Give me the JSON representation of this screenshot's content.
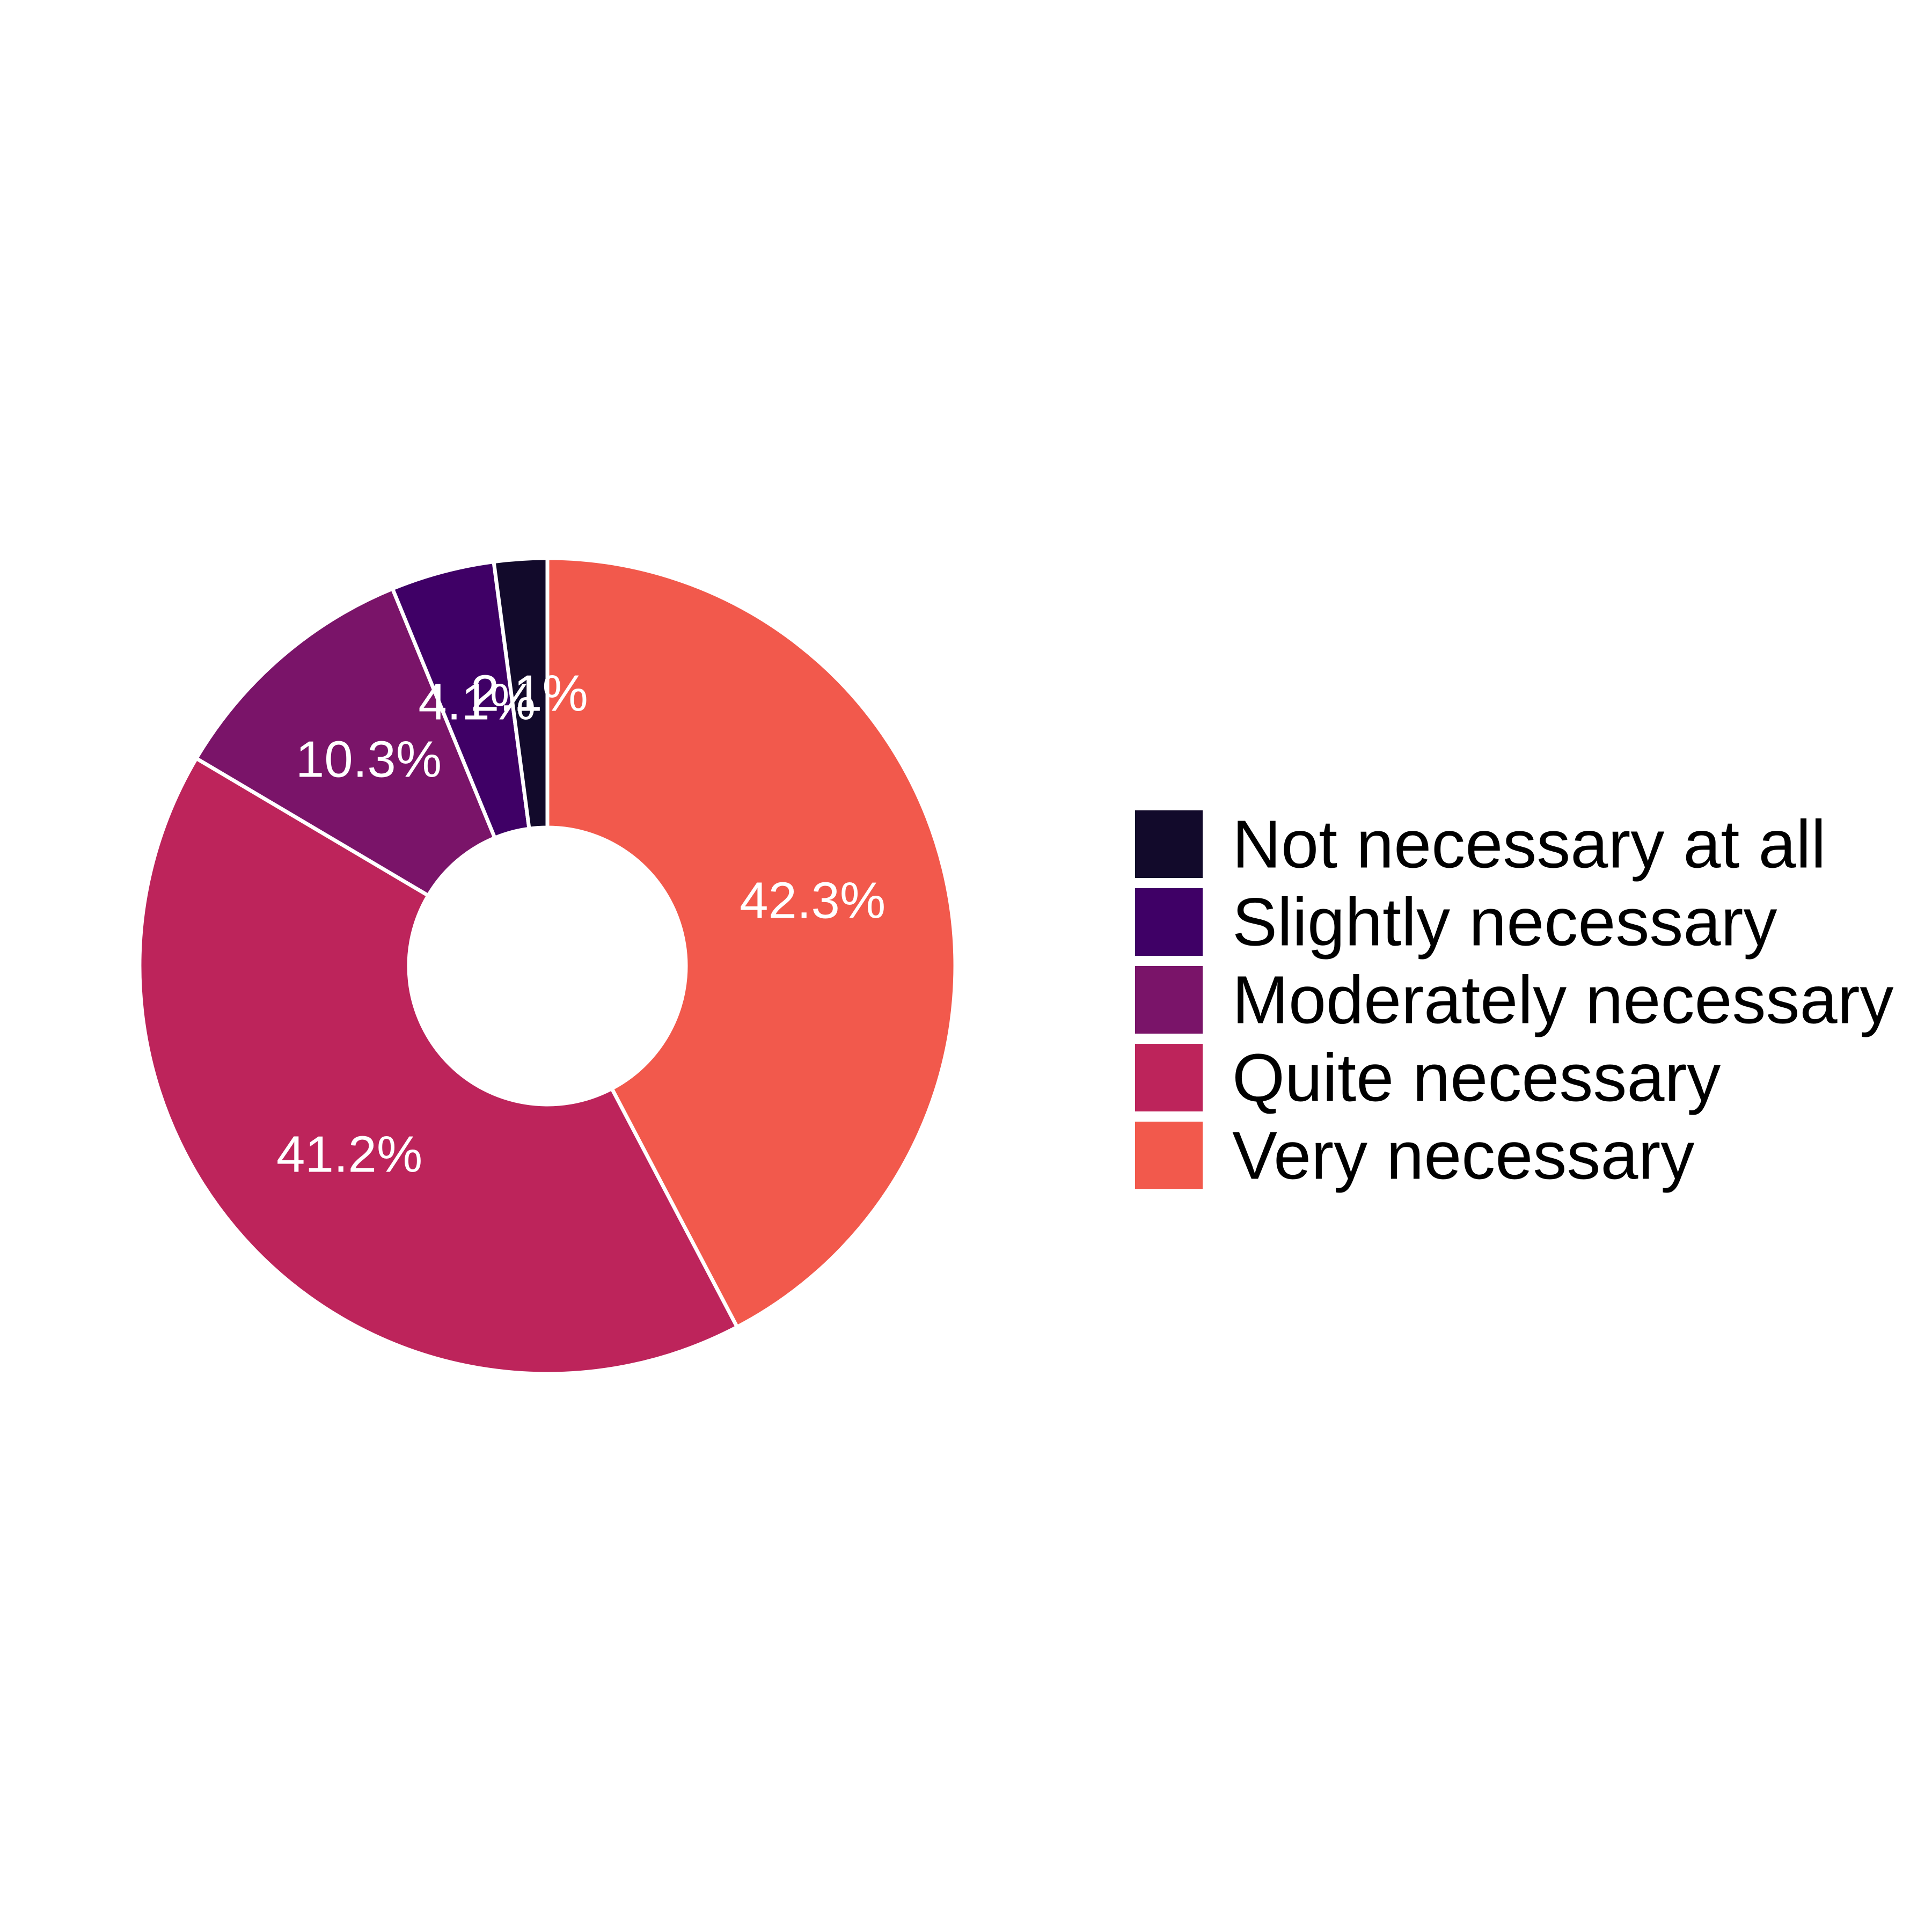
{
  "chart_data": {
    "type": "pie",
    "donut": true,
    "title": "",
    "categories": [
      "Not necessary at all",
      "Slightly necessary",
      "Moderately necessary",
      "Quite necessary",
      "Very necessary"
    ],
    "values": [
      2.1,
      4.1,
      10.3,
      41.2,
      42.3
    ],
    "labels": [
      "2.1%",
      "4.1%",
      "10.3%",
      "41.2%",
      "42.3%"
    ],
    "colors": [
      "#120a2b",
      "#3f0066",
      "#7a1469",
      "#bd245b",
      "#f2594c"
    ],
    "legend_position": "right",
    "separator_color": "#ffffff"
  }
}
